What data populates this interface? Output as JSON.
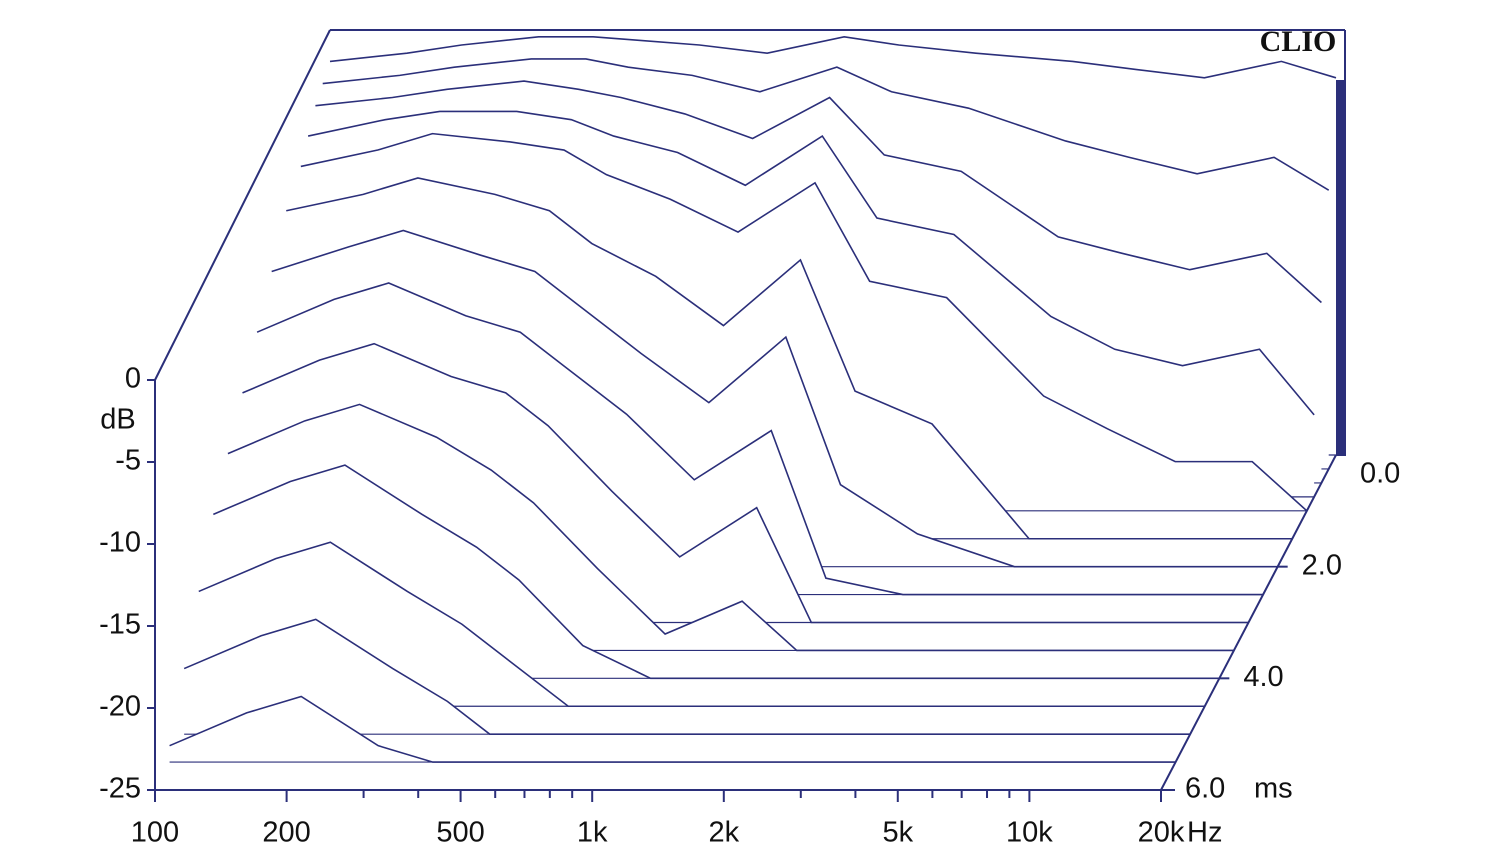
{
  "chart_data": {
    "type": "waterfall",
    "watermark": "CLIO",
    "y_label": "dB",
    "x_unit": "Hz",
    "z_unit": "ms",
    "color": "#2b2f7a",
    "x": [
      100,
      150,
      200,
      300,
      400,
      500,
      700,
      1000,
      1500,
      2000,
      3000,
      5000,
      7000,
      10000,
      15000,
      20000
    ],
    "z": [
      0,
      0.25,
      0.5,
      0.75,
      1.0,
      1.5,
      2.0,
      2.5,
      3.0,
      3.5,
      4.0,
      4.5,
      5.0,
      5.5,
      6.0
    ],
    "values": [
      [
        -1,
        -0.5,
        0,
        0.5,
        0.5,
        0.3,
        0,
        -0.5,
        0.5,
        0,
        -0.5,
        -1,
        -1.5,
        -2,
        -1,
        -2
      ],
      [
        -1.5,
        -1,
        -0.5,
        0,
        0,
        -0.5,
        -1,
        -2,
        -0.5,
        -2,
        -3,
        -5,
        -6,
        -7,
        -6,
        -8
      ],
      [
        -2,
        -1.5,
        -1,
        -0.5,
        -1,
        -1.5,
        -2.5,
        -4,
        -1.5,
        -5,
        -6,
        -10,
        -11,
        -12,
        -11,
        -14
      ],
      [
        -3,
        -2,
        -1.5,
        -1.5,
        -2,
        -3,
        -4,
        -6,
        -3,
        -8,
        -9,
        -14,
        -16,
        -17,
        -16,
        -20
      ],
      [
        -4,
        -3,
        -2,
        -2.5,
        -3,
        -4.5,
        -6,
        -8,
        -5,
        -11,
        -12,
        -18,
        -20,
        -22,
        -22,
        -25
      ],
      [
        -5,
        -4,
        -3,
        -4,
        -5,
        -7,
        -9,
        -12,
        -8,
        -16,
        -18,
        -25,
        -25,
        -25,
        -25,
        -25
      ],
      [
        -7,
        -5.5,
        -4.5,
        -6,
        -7,
        -9,
        -12,
        -15,
        -11,
        -20,
        -23,
        -25,
        -25,
        -25,
        -25,
        -25
      ],
      [
        -9,
        -7,
        -6,
        -8,
        -9,
        -11,
        -14,
        -18,
        -15,
        -24,
        -25,
        -25,
        -25,
        -25,
        -25,
        -25
      ],
      [
        -11,
        -9,
        -8,
        -10,
        -11,
        -13,
        -17,
        -21,
        -18,
        -25,
        -25,
        -25,
        -25,
        -25,
        -25,
        -25
      ],
      [
        -13,
        -11,
        -10,
        -12,
        -14,
        -16,
        -20,
        -24,
        -22,
        -25,
        -25,
        -25,
        -25,
        -25,
        -25,
        -25
      ],
      [
        -15,
        -13,
        -12,
        -15,
        -17,
        -19,
        -23,
        -25,
        -25,
        -25,
        -25,
        -25,
        -25,
        -25,
        -25,
        -25
      ],
      [
        -18,
        -16,
        -15,
        -18,
        -20,
        -22,
        -25,
        -25,
        -25,
        -25,
        -25,
        -25,
        -25,
        -25,
        -25,
        -25
      ],
      [
        -21,
        -19,
        -18,
        -21,
        -23,
        -25,
        -25,
        -25,
        -25,
        -25,
        -25,
        -25,
        -25,
        -25,
        -25,
        -25
      ],
      [
        -24,
        -22,
        -21,
        -24,
        -25,
        -25,
        -25,
        -25,
        -25,
        -25,
        -25,
        -25,
        -25,
        -25,
        -25,
        -25
      ],
      [
        -25,
        -25,
        -25,
        -25,
        -25,
        -25,
        -25,
        -25,
        -25,
        -25,
        -25,
        -25,
        -25,
        -25,
        -25,
        -25
      ]
    ],
    "xlim": [
      100,
      20000
    ],
    "ylim": [
      -25,
      0
    ],
    "zlim": [
      0,
      6
    ],
    "log_x": true,
    "xticks": [
      100,
      200,
      500,
      {
        "value": 1000,
        "label": "1k"
      },
      {
        "value": 2000,
        "label": "2k"
      },
      {
        "value": 5000,
        "label": "5k"
      },
      {
        "value": 10000,
        "label": "10k"
      },
      {
        "value": 20000,
        "label": "20k"
      }
    ],
    "xminorticks": [
      300,
      400,
      600,
      700,
      800,
      900,
      3000,
      4000,
      6000,
      7000,
      8000,
      9000
    ],
    "yticks": [
      0,
      -5,
      -10,
      -15,
      -20,
      -25
    ],
    "zticks": [
      {
        "value": 0,
        "label": "0.0"
      },
      {
        "value": 2,
        "label": "2.0"
      },
      {
        "value": 4,
        "label": "4.0"
      },
      {
        "value": 6,
        "label": "6.0"
      }
    ]
  }
}
